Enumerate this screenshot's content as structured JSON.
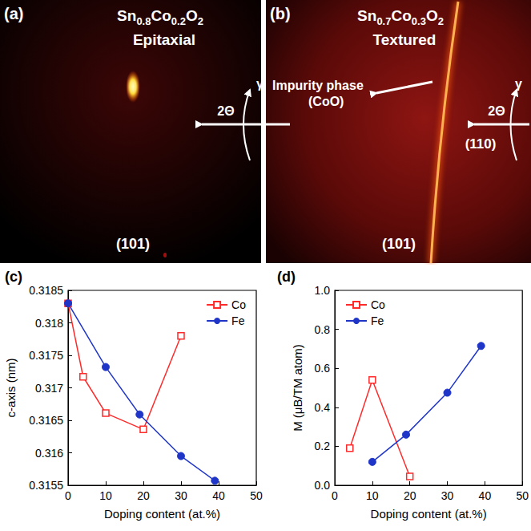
{
  "panels": [
    {
      "letter": "(a)",
      "formula": "Sn0.8Co0.2O2",
      "label": "Epitaxial",
      "reflection": "(101)",
      "axes": [
        "2Θ",
        "γ"
      ]
    },
    {
      "letter": "(b)",
      "formula": "Sn0.7Co0.3O2",
      "label": "Textured",
      "reflection": "(101)",
      "ring": "(110)",
      "annotation": [
        "Impurity phase",
        "(CoO)"
      ],
      "axes": [
        "2Θ",
        "γ"
      ]
    }
  ],
  "chart_data": [
    {
      "type": "line",
      "panel": "(c)",
      "xlabel": "Doping content (at.%)",
      "ylabel": "c-axis (nm)",
      "xlim": [
        0,
        50
      ],
      "xticks": [
        0,
        10,
        20,
        30,
        40,
        50
      ],
      "ylim": [
        0.3155,
        0.3185
      ],
      "yticks": [
        0.3155,
        0.316,
        0.3165,
        0.317,
        0.3175,
        0.318,
        0.3185
      ],
      "grid": false,
      "legend": "upper right",
      "series": [
        {
          "name": "Co",
          "color": "#ff2a2a",
          "marker": "square_open",
          "x": [
            0,
            4,
            10,
            20,
            30
          ],
          "values": [
            0.3183,
            0.31717,
            0.31661,
            0.31636,
            0.3178
          ]
        },
        {
          "name": "Fe",
          "color": "#1f35c8",
          "marker": "circle",
          "x": [
            0,
            10,
            19,
            30,
            39
          ],
          "values": [
            0.3183,
            0.31732,
            0.31659,
            0.31595,
            0.31557
          ]
        }
      ]
    },
    {
      "type": "line",
      "panel": "(d)",
      "xlabel": "Doping content (at.%)",
      "ylabel": "M (μB/TM atom)",
      "xlim": [
        0,
        50
      ],
      "xticks": [
        0,
        10,
        20,
        30,
        40,
        50
      ],
      "ylim": [
        0,
        1
      ],
      "yticks": [
        {
          "value": 0,
          "label": "0.0"
        },
        0.2,
        0.4,
        0.6,
        0.8,
        {
          "value": 1,
          "label": "1.0"
        }
      ],
      "grid": false,
      "legend": "upper left",
      "series": [
        {
          "name": "Co",
          "color": "#ff2a2a",
          "marker": "square_open",
          "x": [
            4,
            10,
            20
          ],
          "values": [
            0.19,
            0.54,
            0.045
          ]
        },
        {
          "name": "Fe",
          "color": "#1f35c8",
          "marker": "circle",
          "x": [
            10,
            19,
            30,
            39
          ],
          "values": [
            0.12,
            0.26,
            0.475,
            0.715
          ]
        }
      ]
    }
  ]
}
